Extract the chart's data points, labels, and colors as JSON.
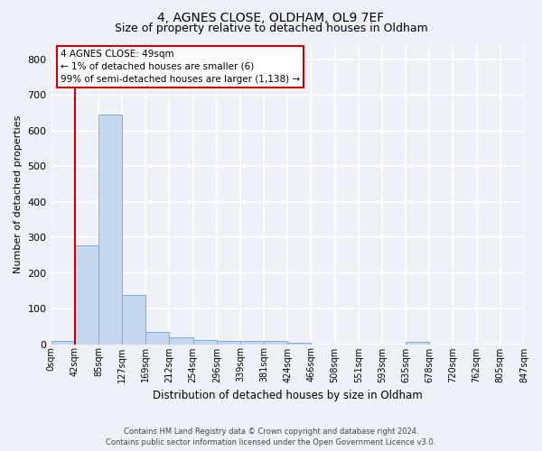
{
  "title": "4, AGNES CLOSE, OLDHAM, OL9 7EF",
  "subtitle": "Size of property relative to detached houses in Oldham",
  "xlabel": "Distribution of detached houses by size in Oldham",
  "ylabel": "Number of detached properties",
  "bar_values": [
    8,
    278,
    645,
    138,
    33,
    18,
    12,
    10,
    10,
    9,
    5,
    0,
    0,
    0,
    0,
    6,
    0,
    0,
    0,
    0
  ],
  "bin_labels": [
    "0sqm",
    "42sqm",
    "85sqm",
    "127sqm",
    "169sqm",
    "212sqm",
    "254sqm",
    "296sqm",
    "339sqm",
    "381sqm",
    "424sqm",
    "466sqm",
    "508sqm",
    "551sqm",
    "593sqm",
    "635sqm",
    "678sqm",
    "720sqm",
    "762sqm",
    "805sqm",
    "847sqm"
  ],
  "bar_color": "#c5d8f0",
  "bar_edge_color": "#7aafd4",
  "vline_x": 1.0,
  "vline_color": "#cc0000",
  "annotation_text_line1": "4 AGNES CLOSE: 49sqm",
  "annotation_text_line2": "← 1% of detached houses are smaller (6)",
  "annotation_text_line3": "99% of semi-detached houses are larger (1,138) →",
  "annotation_box_color": "#cc0000",
  "ylim": [
    0,
    840
  ],
  "yticks": [
    0,
    100,
    200,
    300,
    400,
    500,
    600,
    700,
    800
  ],
  "footer_line1": "Contains HM Land Registry data © Crown copyright and database right 2024.",
  "footer_line2": "Contains public sector information licensed under the Open Government Licence v3.0.",
  "background_color": "#eef2f8",
  "grid_color": "#ffffff",
  "title_fontsize": 10,
  "subtitle_fontsize": 9,
  "ylabel_fontsize": 8,
  "xlabel_fontsize": 8.5,
  "ytick_fontsize": 8,
  "xtick_fontsize": 7
}
